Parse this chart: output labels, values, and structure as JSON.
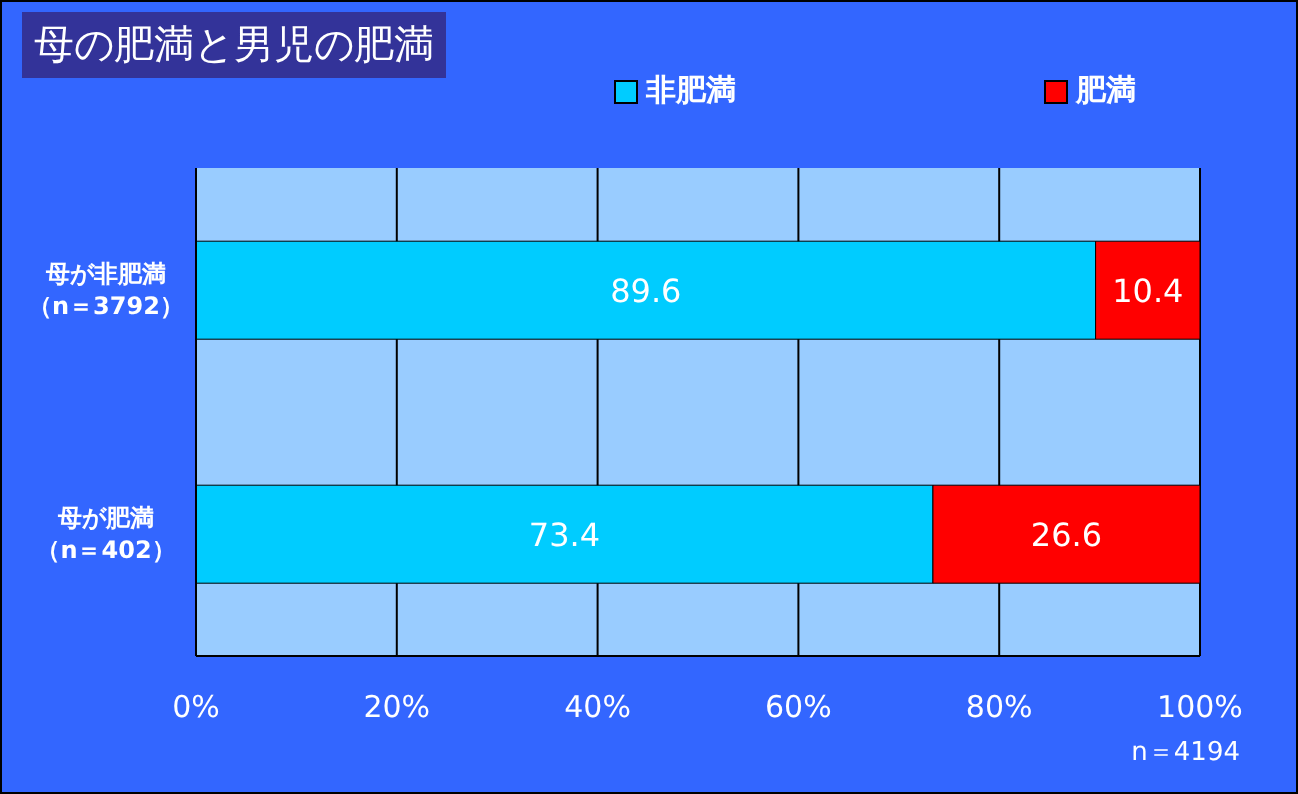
{
  "chart_data": {
    "type": "bar",
    "orientation": "horizontal",
    "stacked": true,
    "title": "母の肥満と男児の肥満",
    "categories": [
      "母が非肥満（n＝3792）",
      "母が肥満（n＝402）"
    ],
    "series": [
      {
        "name": "非肥満",
        "color": "#00ccff",
        "values": [
          89.6,
          73.4
        ]
      },
      {
        "name": "肥満",
        "color": "#ff0000",
        "values": [
          10.4,
          26.6
        ]
      }
    ],
    "xlim": [
      0,
      100
    ],
    "xticks": [
      {
        "value": 0,
        "label": "0%"
      },
      {
        "value": 20,
        "label": "20%"
      },
      {
        "value": 40,
        "label": "40%"
      },
      {
        "value": 60,
        "label": "60%"
      },
      {
        "value": 80,
        "label": "80%"
      },
      {
        "value": 100,
        "label": "100%"
      }
    ],
    "grid": "x",
    "legend": "top",
    "data_labels": true,
    "annotations": [
      "n＝4194"
    ]
  }
}
